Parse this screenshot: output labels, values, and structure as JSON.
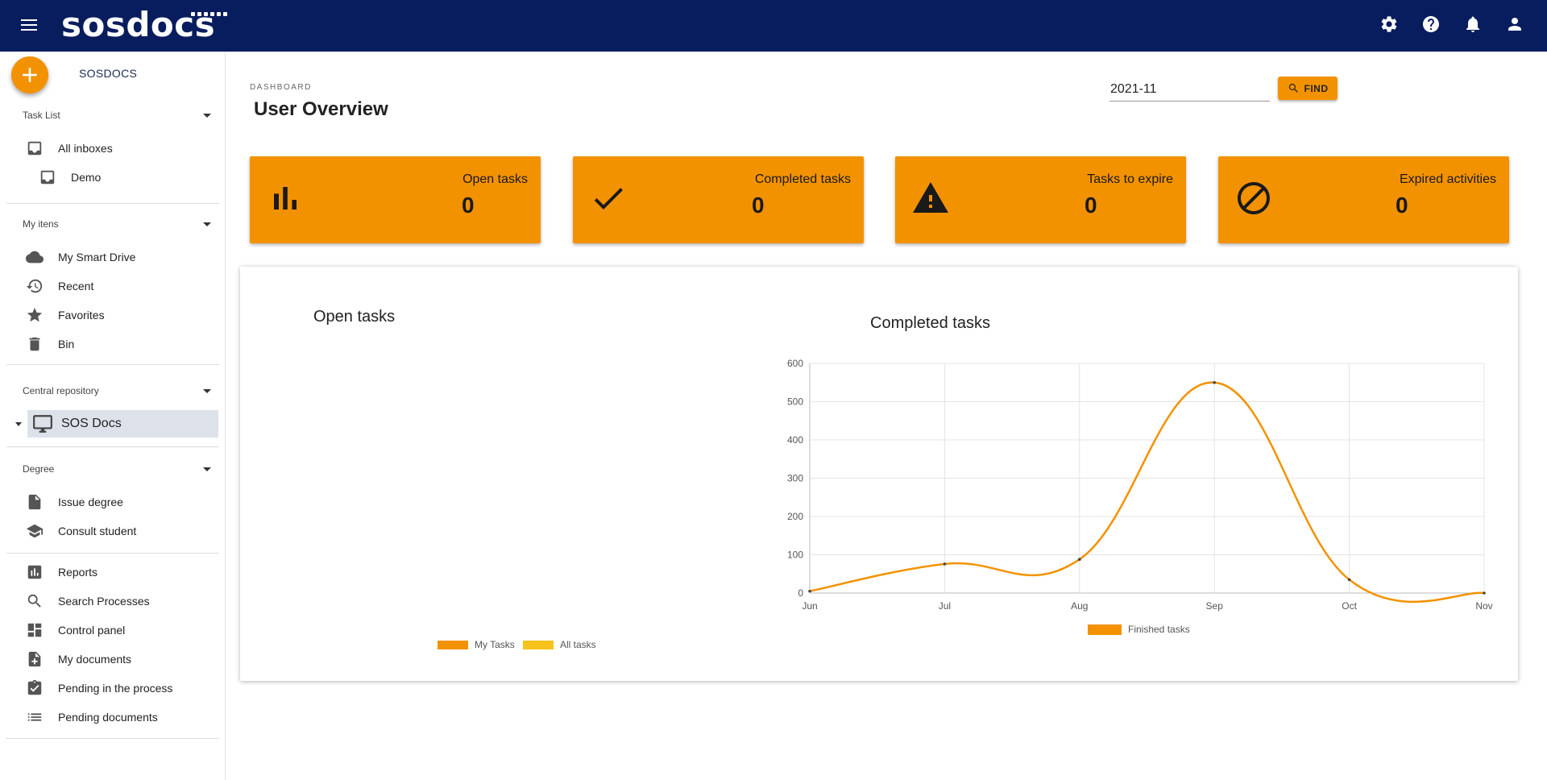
{
  "app": {
    "logo_text": "sosdocs",
    "brand_label": "SOSDOCS"
  },
  "topbar": {
    "icons": [
      "settings-icon",
      "help-icon",
      "notifications-icon",
      "account-icon"
    ]
  },
  "sidebar": {
    "task_list": {
      "header": "Task List",
      "items": [
        {
          "label": "All inboxes",
          "icon": "inbox-icon"
        },
        {
          "label": "Demo",
          "icon": "inbox-icon"
        }
      ]
    },
    "my_items": {
      "header": "My itens",
      "items": [
        {
          "label": "My Smart Drive",
          "icon": "cloud-icon"
        },
        {
          "label": "Recent",
          "icon": "history-icon"
        },
        {
          "label": "Favorites",
          "icon": "star-icon"
        },
        {
          "label": "Bin",
          "icon": "trash-icon"
        }
      ]
    },
    "central_repository": {
      "header": "Central repository",
      "items": [
        {
          "label": "SOS Docs",
          "icon": "desktop-icon"
        }
      ]
    },
    "degree": {
      "header": "Degree",
      "items": [
        {
          "label": "Issue degree",
          "icon": "file-icon"
        },
        {
          "label": "Consult student",
          "icon": "school-icon"
        }
      ]
    },
    "other": {
      "items": [
        {
          "label": "Reports",
          "icon": "bar-chart-icon"
        },
        {
          "label": "Search Processes",
          "icon": "search-icon"
        },
        {
          "label": "Control panel",
          "icon": "dashboard-icon"
        },
        {
          "label": "My documents",
          "icon": "note-add-icon"
        },
        {
          "label": "Pending in the process",
          "icon": "assignment-done-icon"
        },
        {
          "label": "Pending documents",
          "icon": "list-icon"
        }
      ]
    }
  },
  "main": {
    "breadcrumb": "DASHBOARD",
    "title": "User Overview",
    "filter": {
      "value": "2021-11",
      "button_label": "FIND"
    },
    "cards": [
      {
        "title": "Open tasks",
        "value": "0",
        "icon": "bar-chart-icon"
      },
      {
        "title": "Completed tasks",
        "value": "0",
        "icon": "check-icon"
      },
      {
        "title": "Tasks to expire",
        "value": "0",
        "icon": "warning-icon"
      },
      {
        "title": "Expired activities",
        "value": "0",
        "icon": "block-icon"
      }
    ]
  },
  "colors": {
    "topbar": "#081d5e",
    "accent": "#f39200",
    "secondary": "#f7c21a"
  },
  "chart_data": [
    {
      "type": "pie",
      "title": "Open tasks",
      "categories": [
        "My Tasks",
        "All tasks"
      ],
      "values": [
        0,
        0
      ],
      "legend": {
        "position": "bottom",
        "entries": [
          "My Tasks",
          "All tasks"
        ]
      }
    },
    {
      "type": "line",
      "title": "Completed tasks",
      "categories": [
        "Jun",
        "Jul",
        "Aug",
        "Sep",
        "Oct",
        "Nov"
      ],
      "series": [
        {
          "name": "Finished tasks",
          "values": [
            5,
            76,
            88,
            550,
            35,
            0
          ]
        }
      ],
      "ylim": [
        0,
        600
      ],
      "yticks": [
        0,
        100,
        200,
        300,
        400,
        500,
        600
      ],
      "grid": true,
      "legend": {
        "position": "bottom"
      }
    }
  ]
}
